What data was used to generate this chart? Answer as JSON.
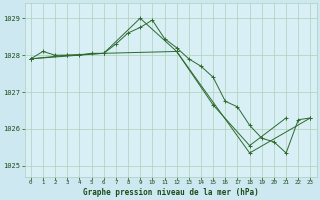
{
  "title": "Graphe pression niveau de la mer (hPa)",
  "background_color": "#cde8f0",
  "plot_bg_color": "#d8eff5",
  "line_color": "#2d6a2d",
  "grid_color": "#b0ceb8",
  "xlabel_color": "#1a4d1a",
  "xlim": [
    -0.5,
    23.5
  ],
  "ylim": [
    1024.7,
    1029.4
  ],
  "yticks": [
    1025,
    1026,
    1027,
    1028,
    1029
  ],
  "xticks": [
    0,
    1,
    2,
    3,
    4,
    5,
    6,
    7,
    8,
    9,
    10,
    11,
    12,
    13,
    14,
    15,
    16,
    17,
    18,
    19,
    20,
    21,
    22,
    23
  ],
  "series1_x": [
    0,
    1,
    2,
    3,
    4,
    5,
    6,
    7,
    8,
    9,
    10,
    11,
    12,
    13,
    14,
    15,
    16,
    17,
    18,
    19,
    20,
    21,
    22,
    23
  ],
  "series1_y": [
    1027.9,
    1028.1,
    1028.0,
    1028.0,
    1028.0,
    1028.05,
    1028.05,
    1028.3,
    1028.6,
    1028.75,
    1028.95,
    1028.45,
    1028.2,
    1027.9,
    1027.7,
    1027.4,
    1026.75,
    1026.6,
    1026.1,
    1025.75,
    1025.65,
    1025.35,
    1026.25,
    1026.3
  ],
  "series2_x": [
    0,
    3,
    6,
    9,
    12,
    15,
    18,
    21
  ],
  "series2_y": [
    1027.9,
    1028.0,
    1028.05,
    1029.0,
    1028.1,
    1026.65,
    1025.55,
    1026.3
  ],
  "series3_x": [
    0,
    6,
    12,
    18,
    23
  ],
  "series3_y": [
    1027.9,
    1028.05,
    1028.1,
    1025.35,
    1026.3
  ]
}
